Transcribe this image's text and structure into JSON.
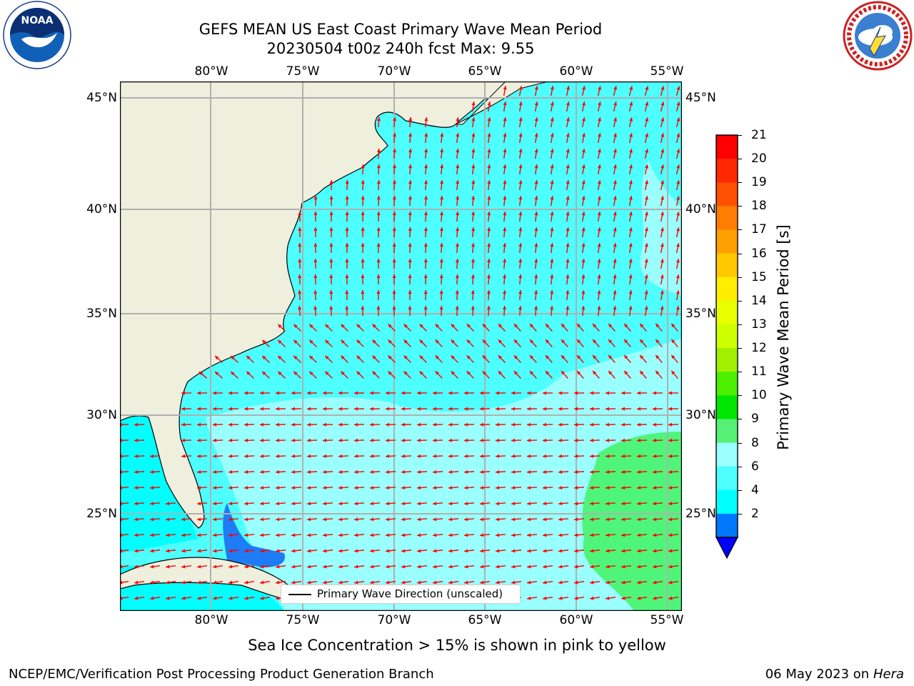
{
  "title": {
    "line1": "GEFS MEAN US East Coast Primary Wave Mean Period",
    "line2": "20230504 t00z 240h fcst   Max: 9.55"
  },
  "logos": {
    "left": {
      "icon": "noaa-logo",
      "text": "NOAA"
    },
    "right": {
      "icon": "national-weather-service-logo"
    }
  },
  "map": {
    "longitude_labels": [
      "80°W",
      "75°W",
      "70°W",
      "65°W",
      "60°W",
      "55°W"
    ],
    "latitude_labels": [
      "45°N",
      "40°N",
      "35°N",
      "30°N",
      "25°N"
    ],
    "colors": {
      "land": "#efefde",
      "ocean_4_6": "#00ffff",
      "ocean_6_8": "#4dffff",
      "ocean_8_9": "#99ffff",
      "ocean_9_10": "#4ff57a",
      "ocean_2_4": "#1e7cf6",
      "arrow": "#ff0000",
      "grid": "#b0b0b0"
    }
  },
  "legend": {
    "label": "Primary Wave Direction (unscaled)"
  },
  "colorbar": {
    "label": "Primary Wave Mean Period [s]",
    "ticks": [
      "21",
      "20",
      "19",
      "18",
      "17",
      "16",
      "15",
      "14",
      "13",
      "12",
      "11",
      "10",
      "9",
      "8",
      "6",
      "4",
      "2"
    ],
    "colors": [
      "#ff0000",
      "#ff2800",
      "#ff5000",
      "#ff7d00",
      "#ffa000",
      "#ffc800",
      "#ffee00",
      "#e8ff00",
      "#ccff00",
      "#a0f000",
      "#4cf000",
      "#00e600",
      "#55f075",
      "#99ffff",
      "#4dffff",
      "#00ffff",
      "#0077ff"
    ],
    "under_color": "#0000ff"
  },
  "footer": {
    "note": "Sea Ice Concentration > 15% is shown in pink to yellow",
    "left": "NCEP/EMC/Verification Post Processing Product Generation Branch",
    "date": "06 May 2023 on",
    "machine": "Hera"
  }
}
